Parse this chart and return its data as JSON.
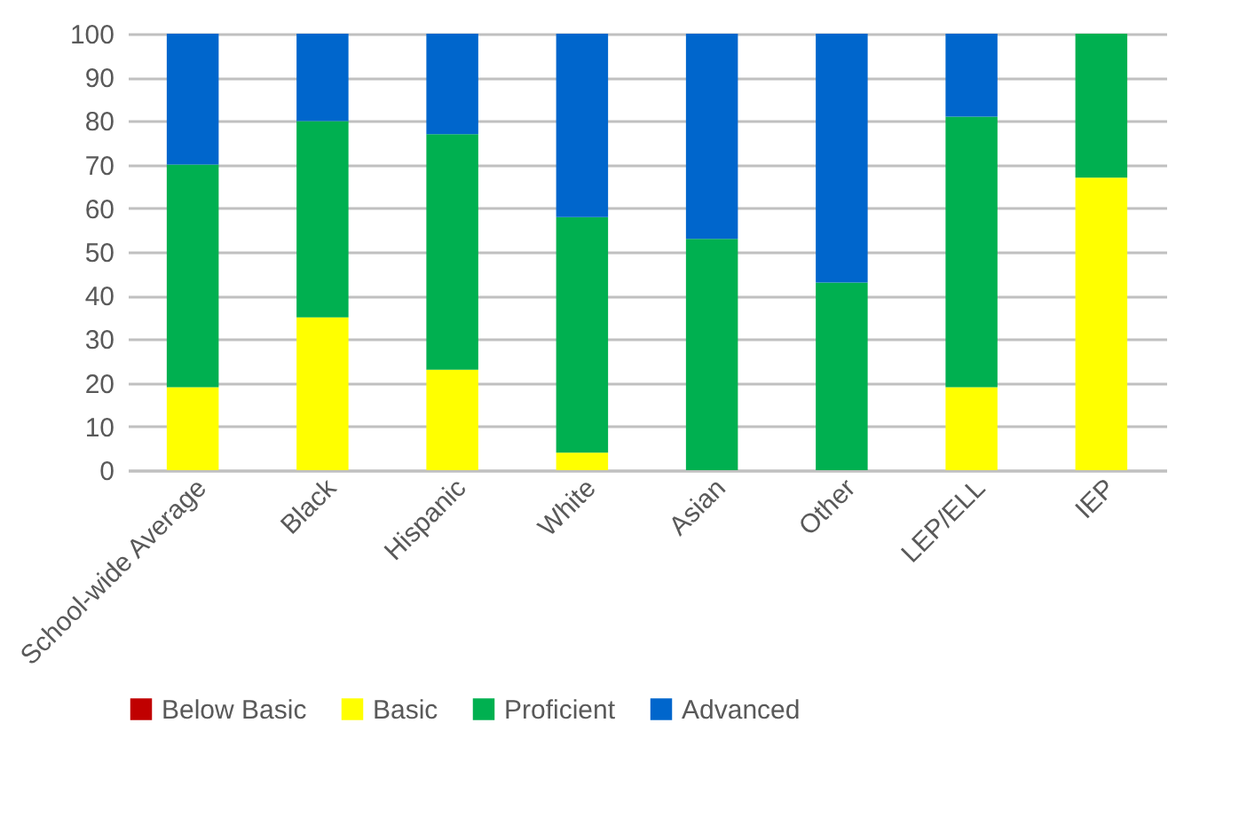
{
  "chart_data": {
    "type": "bar",
    "stacked": true,
    "categories": [
      "School-wide Average",
      "Black",
      "Hispanic",
      "White",
      "Asian",
      "Other",
      "LEP/ELL",
      "IEP"
    ],
    "series": [
      {
        "name": "Below Basic",
        "color": "#c00000",
        "values": [
          0,
          0,
          0,
          0,
          0,
          0,
          0,
          0
        ]
      },
      {
        "name": "Basic",
        "color": "#ffff00",
        "values": [
          19,
          35,
          23,
          4,
          0,
          0,
          19,
          67
        ]
      },
      {
        "name": "Proficient",
        "color": "#00b050",
        "values": [
          51,
          45,
          54,
          54,
          53,
          43,
          62,
          33
        ]
      },
      {
        "name": "Advanced",
        "color": "#0066cc",
        "values": [
          30,
          20,
          23,
          42,
          47,
          57,
          19,
          0
        ]
      }
    ],
    "ylim": [
      0,
      100
    ],
    "yticks": [
      0,
      10,
      20,
      30,
      40,
      50,
      60,
      70,
      80,
      90,
      100
    ],
    "grid": "y",
    "legend": "bottom"
  }
}
